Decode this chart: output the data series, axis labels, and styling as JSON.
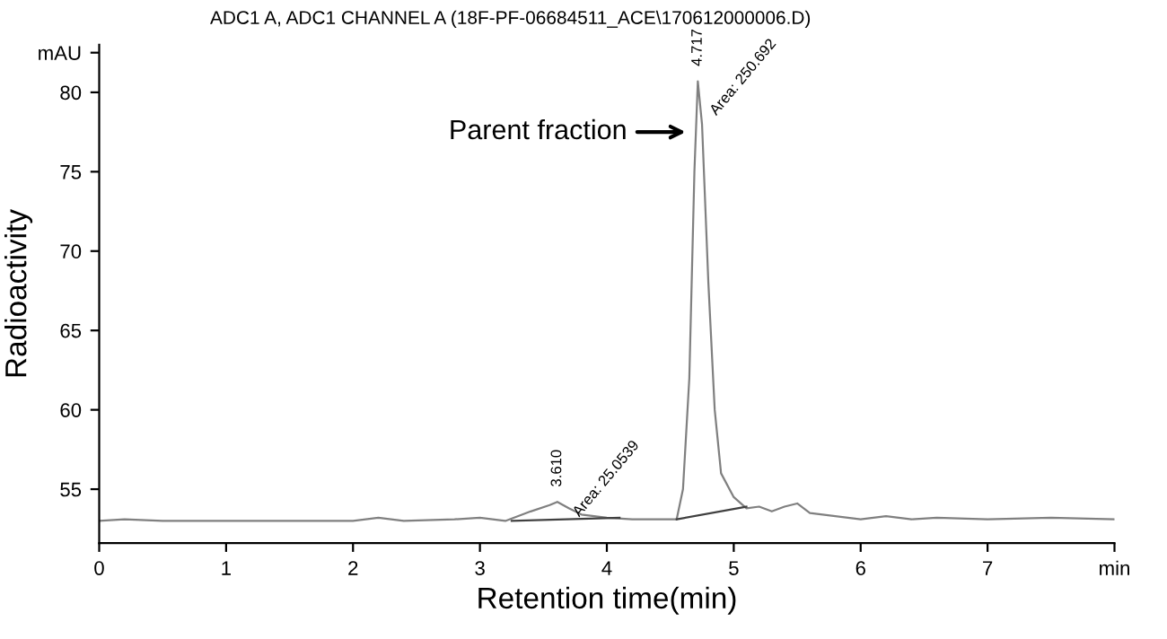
{
  "chart_data": {
    "type": "line",
    "title": "ADC1 A, ADC1 CHANNEL A (18F-PF-06684511_ACE\\170612000006.D)",
    "xlabel": "Retention time(min)",
    "ylabel": "Radioactivity",
    "series": [
      {
        "color": "#808080",
        "x": [
          0,
          0.2,
          0.5,
          1,
          1.5,
          2.0,
          2.2,
          2.4,
          2.8,
          3.0,
          3.2,
          3.4,
          3.55,
          3.61,
          3.7,
          3.8,
          3.9,
          4.0,
          4.2,
          4.4,
          4.55,
          4.6,
          4.65,
          4.69,
          4.717,
          4.75,
          4.8,
          4.85,
          4.9,
          5.0,
          5.1,
          5.2,
          5.3,
          5.4,
          5.5,
          5.6,
          5.8,
          6.0,
          6.2,
          6.4,
          6.6,
          7.0,
          7.5,
          8.0
        ],
        "values": [
          53.0,
          53.1,
          53.0,
          53.0,
          53.0,
          53.0,
          53.2,
          53.0,
          53.1,
          53.2,
          53.0,
          53.6,
          54.0,
          54.2,
          53.8,
          53.4,
          53.3,
          53.2,
          53.1,
          53.1,
          53.1,
          55.0,
          62.0,
          75.0,
          80.7,
          78.0,
          68.0,
          60.0,
          56.0,
          54.5,
          53.8,
          53.9,
          53.6,
          53.9,
          54.1,
          53.5,
          53.3,
          53.1,
          53.3,
          53.1,
          53.2,
          53.1,
          53.2,
          53.1
        ]
      },
      {
        "color": "#404040",
        "x": [
          3.25,
          4.1
        ],
        "values": [
          53.0,
          53.2
        ]
      },
      {
        "color": "#404040",
        "x": [
          4.55,
          5.1
        ],
        "values": [
          53.1,
          53.9
        ]
      }
    ],
    "xlim": [
      0,
      8.0
    ],
    "xticks": [
      0,
      1,
      2,
      3,
      4,
      5,
      6,
      7,
      {
        "value": 8,
        "label": "min"
      }
    ],
    "ylim": [
      51.6,
      83
    ],
    "yticks": [
      55,
      60,
      65,
      70,
      75,
      80,
      {
        "value": 82.5,
        "label": "mAU"
      }
    ],
    "grid": false,
    "legend": false,
    "marker": "none",
    "line_style": "solid",
    "annotations": [
      {
        "text": "4.717",
        "x": 4.717,
        "y": 80.7
      },
      {
        "text": "Area: 250.692",
        "x": 4.76,
        "y": 79.3
      },
      {
        "text": "3.610",
        "x": 3.61,
        "y": 54.2
      },
      {
        "text": "Area: 25.0539",
        "x": 3.68,
        "y": 54.0
      },
      {
        "text": "Parent fraction",
        "x": 4.66,
        "y": 77.5
      }
    ]
  }
}
